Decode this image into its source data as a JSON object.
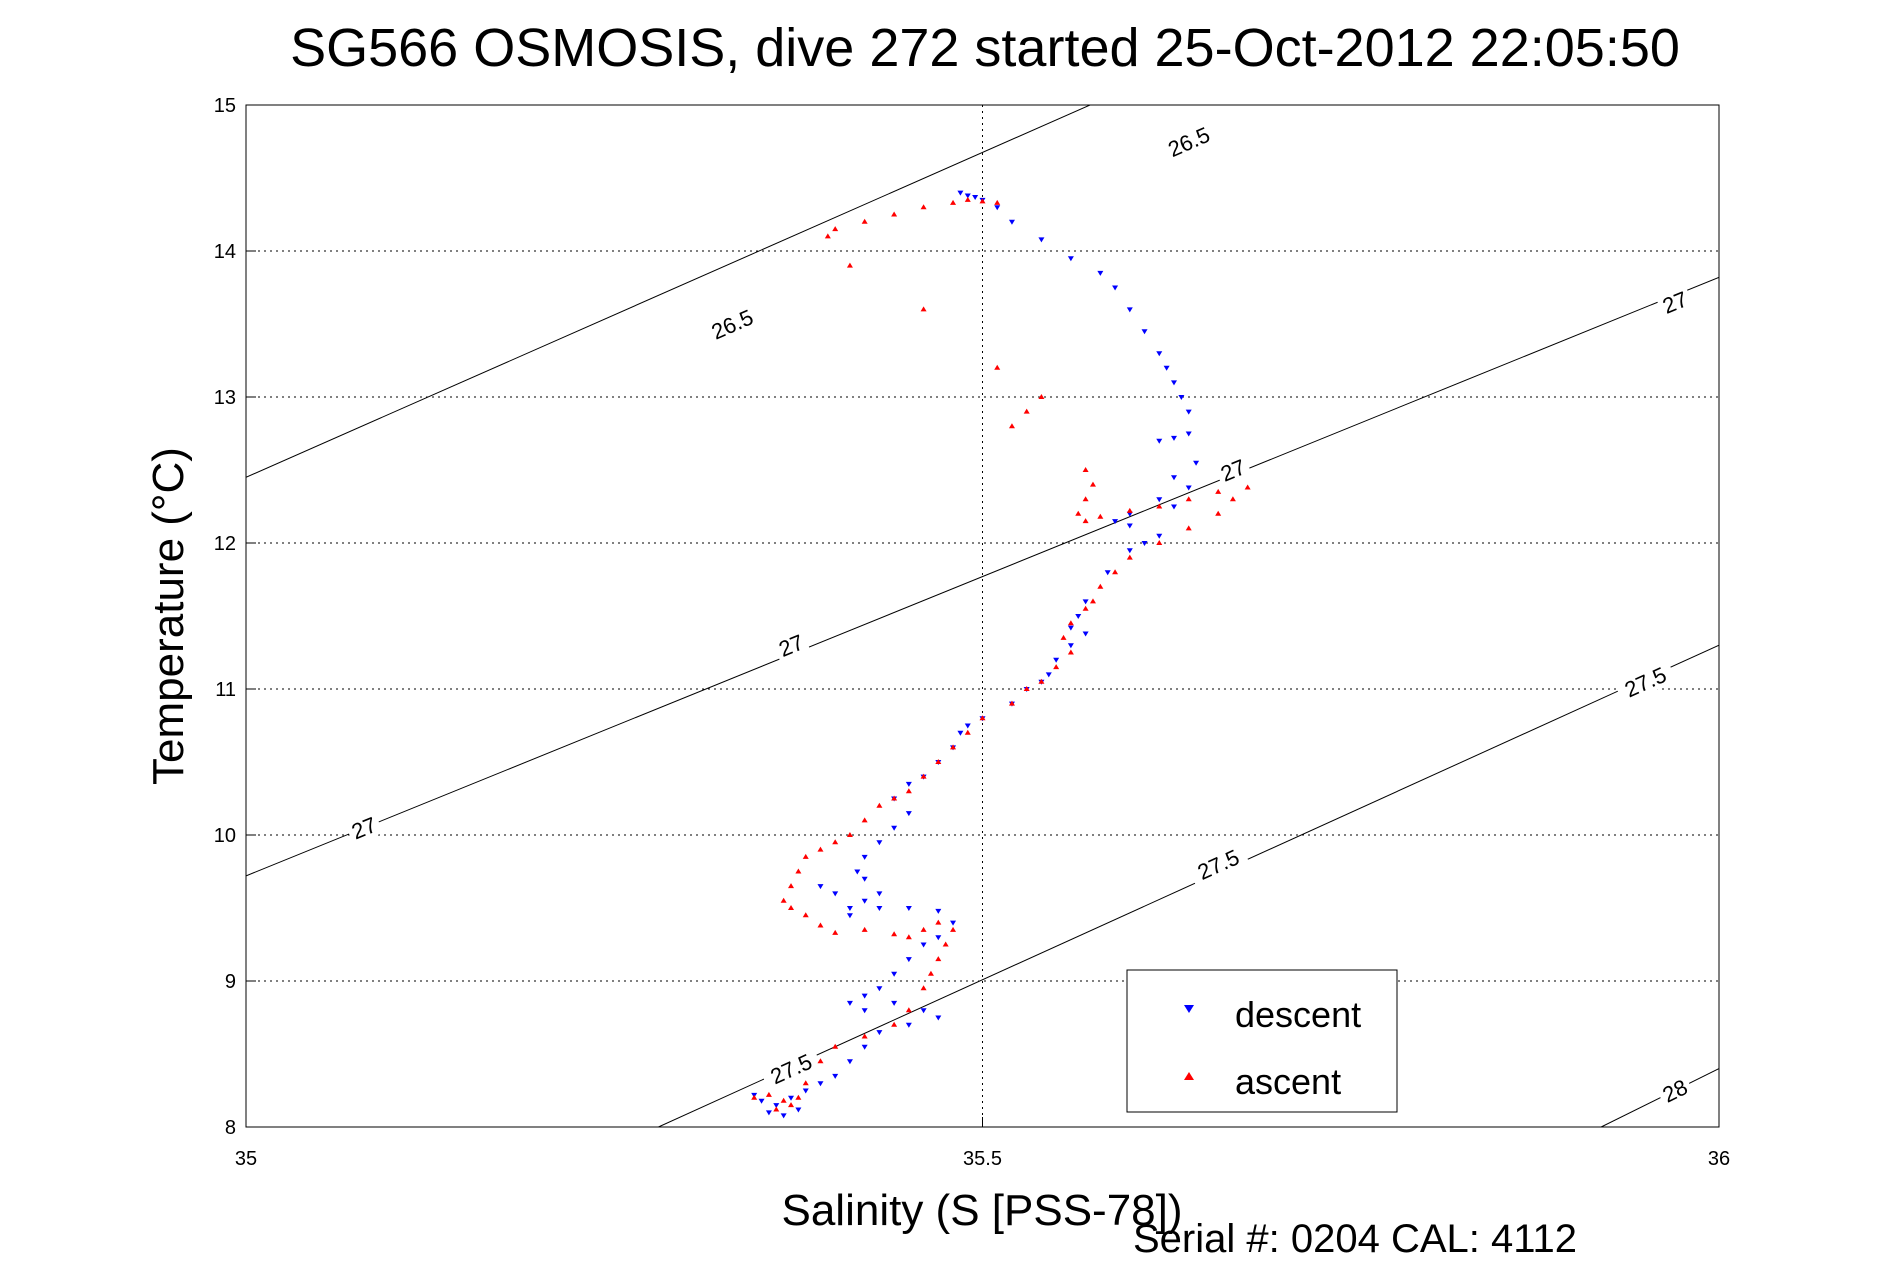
{
  "chart_data": {
    "type": "scatter",
    "title": "SG566 OSMOSIS, dive 272 started 25-Oct-2012 22:05:50",
    "xlabel": "Salinity (S [PSS-78])",
    "ylabel": "Temperature (°C)",
    "footer": "Serial #: 0204  CAL: 4112",
    "xlim": [
      35,
      36
    ],
    "ylim": [
      8,
      15
    ],
    "xticks": [
      "35",
      "35.5",
      "36"
    ],
    "yticks": [
      "8",
      "9",
      "10",
      "11",
      "12",
      "13",
      "14",
      "15"
    ],
    "grid": true,
    "legend_position": "bottom-right",
    "colors": {
      "descent": "#0000ff",
      "ascent": "#ff0000",
      "contour": "#000000"
    },
    "contours": [
      {
        "label": "26.5",
        "points": [
          [
            35,
            12.45
          ],
          [
            36,
            16.9
          ]
        ]
      },
      {
        "label": "27",
        "points": [
          [
            35,
            9.72
          ],
          [
            36,
            13.82
          ]
        ]
      },
      {
        "label": "27.5",
        "points": [
          [
            35.28,
            8
          ],
          [
            36,
            11.3
          ]
        ]
      },
      {
        "label": "28",
        "points": [
          [
            35.92,
            8
          ],
          [
            36,
            8.4
          ]
        ]
      }
    ],
    "contour_labels": [
      {
        "text": "26.5",
        "x": 35.64,
        "y": 14.75
      },
      {
        "text": "26.5",
        "x": 35.33,
        "y": 13.5
      },
      {
        "text": "27",
        "x": 35.97,
        "y": 13.65
      },
      {
        "text": "27",
        "x": 35.67,
        "y": 12.5
      },
      {
        "text": "27",
        "x": 35.37,
        "y": 11.3
      },
      {
        "text": "27",
        "x": 35.08,
        "y": 10.05
      },
      {
        "text": "27.5",
        "x": 35.95,
        "y": 11.05
      },
      {
        "text": "27.5",
        "x": 35.66,
        "y": 9.8
      },
      {
        "text": "27.5",
        "x": 35.37,
        "y": 8.4
      },
      {
        "text": "28",
        "x": 35.97,
        "y": 8.25
      }
    ],
    "series": [
      {
        "name": "descent",
        "marker": "triangle-down",
        "points": [
          [
            35.485,
            14.4
          ],
          [
            35.49,
            14.38
          ],
          [
            35.495,
            14.37
          ],
          [
            35.5,
            14.35
          ],
          [
            35.51,
            14.3
          ],
          [
            35.52,
            14.2
          ],
          [
            35.54,
            14.08
          ],
          [
            35.56,
            13.95
          ],
          [
            35.58,
            13.85
          ],
          [
            35.59,
            13.75
          ],
          [
            35.6,
            13.6
          ],
          [
            35.61,
            13.45
          ],
          [
            35.62,
            13.3
          ],
          [
            35.625,
            13.2
          ],
          [
            35.63,
            13.1
          ],
          [
            35.635,
            13.0
          ],
          [
            35.64,
            12.9
          ],
          [
            35.62,
            12.7
          ],
          [
            35.63,
            12.72
          ],
          [
            35.64,
            12.75
          ],
          [
            35.645,
            12.55
          ],
          [
            35.63,
            12.45
          ],
          [
            35.64,
            12.38
          ],
          [
            35.62,
            12.3
          ],
          [
            35.63,
            12.25
          ],
          [
            35.6,
            12.2
          ],
          [
            35.59,
            12.15
          ],
          [
            35.6,
            12.12
          ],
          [
            35.61,
            12.0
          ],
          [
            35.62,
            12.05
          ],
          [
            35.6,
            11.95
          ],
          [
            35.585,
            11.8
          ],
          [
            35.57,
            11.6
          ],
          [
            35.565,
            11.5
          ],
          [
            35.56,
            11.42
          ],
          [
            35.57,
            11.38
          ],
          [
            35.56,
            11.3
          ],
          [
            35.55,
            11.2
          ],
          [
            35.545,
            11.1
          ],
          [
            35.54,
            11.05
          ],
          [
            35.53,
            11.0
          ],
          [
            35.52,
            10.9
          ],
          [
            35.5,
            10.8
          ],
          [
            35.49,
            10.75
          ],
          [
            35.485,
            10.7
          ],
          [
            35.48,
            10.6
          ],
          [
            35.47,
            10.5
          ],
          [
            35.46,
            10.4
          ],
          [
            35.45,
            10.35
          ],
          [
            35.44,
            10.25
          ],
          [
            35.45,
            10.15
          ],
          [
            35.44,
            10.05
          ],
          [
            35.43,
            9.95
          ],
          [
            35.42,
            9.85
          ],
          [
            35.415,
            9.75
          ],
          [
            35.42,
            9.7
          ],
          [
            35.43,
            9.6
          ],
          [
            35.42,
            9.55
          ],
          [
            35.41,
            9.5
          ],
          [
            35.4,
            9.6
          ],
          [
            35.39,
            9.65
          ],
          [
            35.41,
            9.45
          ],
          [
            35.43,
            9.5
          ],
          [
            35.45,
            9.5
          ],
          [
            35.47,
            9.48
          ],
          [
            35.48,
            9.4
          ],
          [
            35.47,
            9.3
          ],
          [
            35.46,
            9.25
          ],
          [
            35.45,
            9.15
          ],
          [
            35.44,
            9.05
          ],
          [
            35.43,
            8.95
          ],
          [
            35.42,
            8.9
          ],
          [
            35.41,
            8.85
          ],
          [
            35.42,
            8.8
          ],
          [
            35.44,
            8.85
          ],
          [
            35.46,
            8.8
          ],
          [
            35.47,
            8.75
          ],
          [
            35.45,
            8.7
          ],
          [
            35.43,
            8.65
          ],
          [
            35.42,
            8.55
          ],
          [
            35.41,
            8.45
          ],
          [
            35.4,
            8.35
          ],
          [
            35.39,
            8.3
          ],
          [
            35.38,
            8.25
          ],
          [
            35.37,
            8.2
          ],
          [
            35.36,
            8.15
          ],
          [
            35.355,
            8.1
          ],
          [
            35.365,
            8.08
          ],
          [
            35.375,
            8.12
          ],
          [
            35.35,
            8.18
          ],
          [
            35.345,
            8.22
          ]
        ]
      },
      {
        "name": "ascent",
        "marker": "triangle-up",
        "points": [
          [
            35.345,
            8.2
          ],
          [
            35.355,
            8.22
          ],
          [
            35.365,
            8.18
          ],
          [
            35.375,
            8.2
          ],
          [
            35.37,
            8.15
          ],
          [
            35.36,
            8.12
          ],
          [
            35.38,
            8.3
          ],
          [
            35.39,
            8.45
          ],
          [
            35.4,
            8.55
          ],
          [
            35.42,
            8.62
          ],
          [
            35.44,
            8.7
          ],
          [
            35.45,
            8.8
          ],
          [
            35.46,
            8.95
          ],
          [
            35.465,
            9.05
          ],
          [
            35.47,
            9.15
          ],
          [
            35.475,
            9.25
          ],
          [
            35.48,
            9.35
          ],
          [
            35.47,
            9.4
          ],
          [
            35.46,
            9.35
          ],
          [
            35.45,
            9.3
          ],
          [
            35.44,
            9.32
          ],
          [
            35.42,
            9.35
          ],
          [
            35.4,
            9.33
          ],
          [
            35.39,
            9.38
          ],
          [
            35.38,
            9.45
          ],
          [
            35.37,
            9.5
          ],
          [
            35.365,
            9.55
          ],
          [
            35.37,
            9.65
          ],
          [
            35.375,
            9.75
          ],
          [
            35.38,
            9.85
          ],
          [
            35.39,
            9.9
          ],
          [
            35.4,
            9.95
          ],
          [
            35.41,
            10.0
          ],
          [
            35.42,
            10.1
          ],
          [
            35.43,
            10.2
          ],
          [
            35.44,
            10.25
          ],
          [
            35.45,
            10.3
          ],
          [
            35.46,
            10.4
          ],
          [
            35.47,
            10.5
          ],
          [
            35.48,
            10.6
          ],
          [
            35.49,
            10.7
          ],
          [
            35.5,
            10.8
          ],
          [
            35.52,
            10.9
          ],
          [
            35.53,
            11.0
          ],
          [
            35.54,
            11.05
          ],
          [
            35.55,
            11.15
          ],
          [
            35.56,
            11.25
          ],
          [
            35.555,
            11.35
          ],
          [
            35.56,
            11.45
          ],
          [
            35.57,
            11.55
          ],
          [
            35.575,
            11.6
          ],
          [
            35.58,
            11.7
          ],
          [
            35.59,
            11.8
          ],
          [
            35.6,
            11.9
          ],
          [
            35.62,
            12.0
          ],
          [
            35.64,
            12.1
          ],
          [
            35.66,
            12.2
          ],
          [
            35.67,
            12.3
          ],
          [
            35.68,
            12.38
          ],
          [
            35.66,
            12.35
          ],
          [
            35.64,
            12.3
          ],
          [
            35.62,
            12.25
          ],
          [
            35.6,
            12.22
          ],
          [
            35.58,
            12.18
          ],
          [
            35.57,
            12.15
          ],
          [
            35.565,
            12.2
          ],
          [
            35.57,
            12.3
          ],
          [
            35.575,
            12.4
          ],
          [
            35.57,
            12.5
          ],
          [
            35.52,
            12.8
          ],
          [
            35.53,
            12.9
          ],
          [
            35.54,
            13.0
          ],
          [
            35.51,
            13.2
          ],
          [
            35.46,
            13.6
          ],
          [
            35.41,
            13.9
          ],
          [
            35.395,
            14.1
          ],
          [
            35.4,
            14.15
          ],
          [
            35.42,
            14.2
          ],
          [
            35.44,
            14.25
          ],
          [
            35.46,
            14.3
          ],
          [
            35.48,
            14.33
          ],
          [
            35.49,
            14.35
          ],
          [
            35.5,
            14.34
          ],
          [
            35.51,
            14.33
          ]
        ]
      }
    ]
  }
}
